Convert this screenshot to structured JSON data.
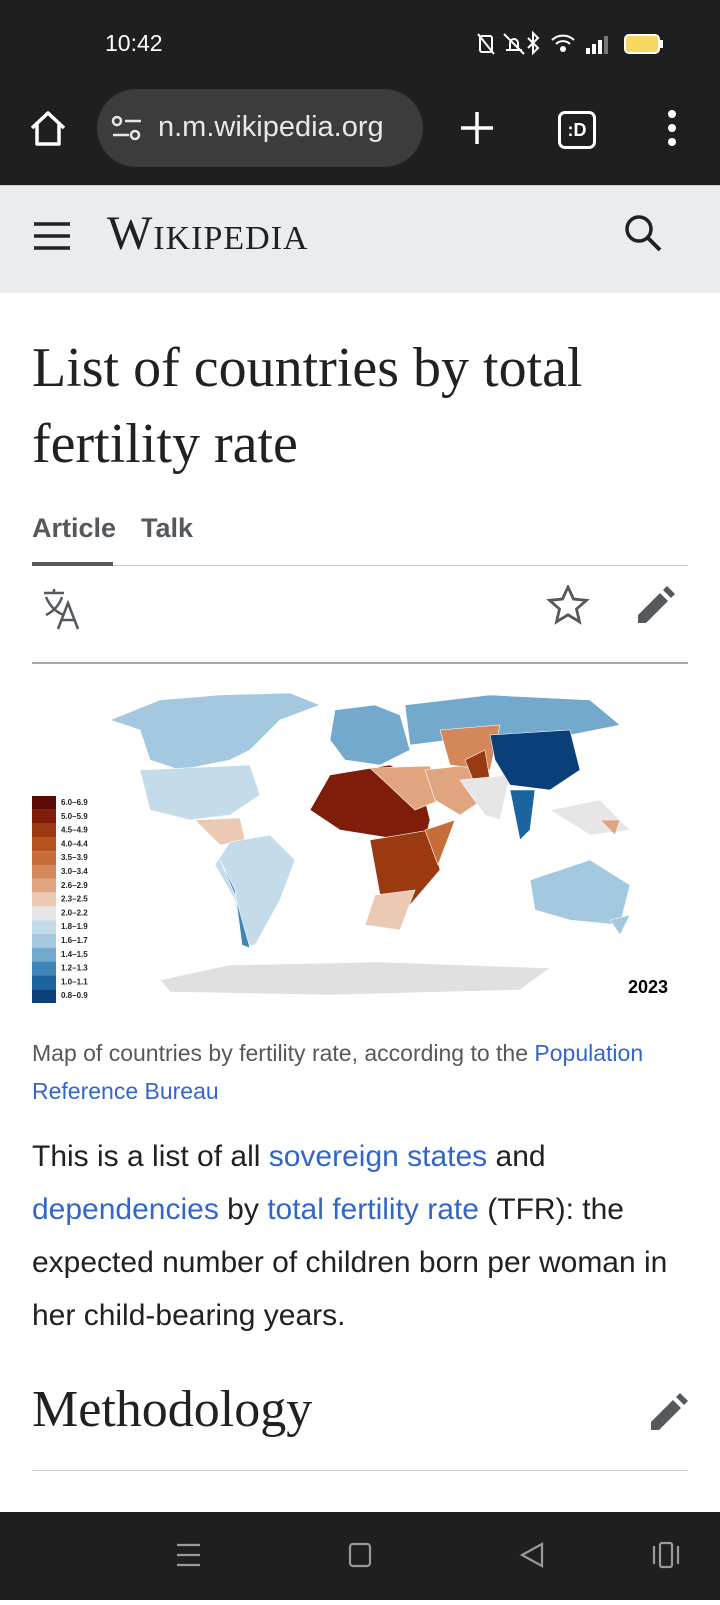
{
  "status_bar": {
    "time": "10:42"
  },
  "browser": {
    "url": "n.m.wikipedia.org",
    "tab_switcher": ":D"
  },
  "header": {
    "logo": "Wikipedia"
  },
  "article": {
    "title": "List of countries by total fertility rate",
    "tabs": [
      "Article",
      "Talk"
    ],
    "map": {
      "year": "2023",
      "legend": [
        {
          "label": "6.0–6.9",
          "color": "#5c0a05"
        },
        {
          "label": "5.0–5.9",
          "color": "#7f1d0b"
        },
        {
          "label": "4.5–4.9",
          "color": "#9b3a10"
        },
        {
          "label": "4.0–4.4",
          "color": "#b5541f"
        },
        {
          "label": "3.5–3.9",
          "color": "#c66d3a"
        },
        {
          "label": "3.0–3.4",
          "color": "#d4875a"
        },
        {
          "label": "2.6–2.9",
          "color": "#e0a47f"
        },
        {
          "label": "2.3–2.5",
          "color": "#ecc9b2"
        },
        {
          "label": "2.0–2.2",
          "color": "#e6e6e6"
        },
        {
          "label": "1.8–1.9",
          "color": "#c4dbea"
        },
        {
          "label": "1.6–1.7",
          "color": "#a4c8df"
        },
        {
          "label": "1.4–1.5",
          "color": "#72a9cc"
        },
        {
          "label": "1.2–1.3",
          "color": "#3f86b7"
        },
        {
          "label": "1.0–1.1",
          "color": "#1c64a0"
        },
        {
          "label": "0.8–0.9",
          "color": "#0b3f7a"
        }
      ]
    },
    "caption": {
      "text": "Map of countries by fertility rate, according to the ",
      "link": "Population Reference Bureau"
    },
    "intro": [
      {
        "text": "This is a list of all "
      },
      {
        "text": "sovereign states",
        "link": true
      },
      {
        "text": " and "
      },
      {
        "text": "dependencies",
        "link": true
      },
      {
        "text": " by "
      },
      {
        "text": "total fertility rate",
        "link": true
      },
      {
        "text": " (TFR): the expected number of children born per woman in her child-bearing years."
      }
    ],
    "section": "Methodology"
  }
}
